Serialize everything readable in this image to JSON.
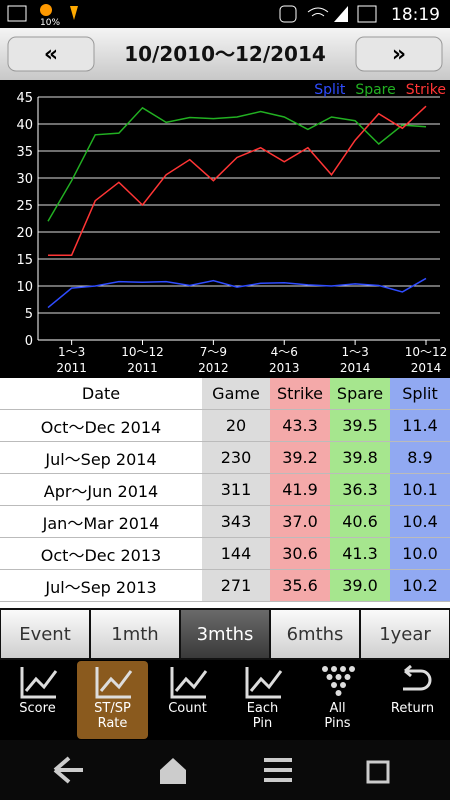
{
  "status_bar": {
    "weather_percent": "10%",
    "time": "18:19"
  },
  "header": {
    "prev": "«",
    "title": "10/2010〜12/2014",
    "next": "»"
  },
  "chart_data": {
    "type": "line",
    "categories": [
      null,
      [
        "1〜3",
        "2011"
      ],
      null,
      null,
      [
        "10〜12",
        "2011"
      ],
      null,
      null,
      [
        "7〜9",
        "2012"
      ],
      null,
      null,
      [
        "4〜6",
        "2013"
      ],
      null,
      null,
      [
        "1〜3",
        "2014"
      ],
      null,
      null,
      [
        "10〜12",
        "2014"
      ]
    ],
    "series": [
      {
        "name": "Split",
        "color": "#2f4cff",
        "values": [
          6.0,
          9.6,
          10.0,
          10.8,
          10.7,
          10.8,
          10.1,
          11.0,
          9.8,
          10.5,
          10.6,
          10.2,
          10.0,
          10.4,
          10.1,
          8.9,
          11.4
        ]
      },
      {
        "name": "Spare",
        "color": "#22b022",
        "values": [
          22.0,
          29.5,
          38.0,
          38.3,
          43.0,
          40.3,
          41.2,
          41.0,
          41.3,
          42.3,
          41.3,
          39.0,
          41.3,
          40.6,
          36.3,
          39.8,
          39.5
        ]
      },
      {
        "name": "Strike",
        "color": "#ff3535",
        "values": [
          15.7,
          15.7,
          25.8,
          29.2,
          25.0,
          30.6,
          33.4,
          29.5,
          33.8,
          35.6,
          33.0,
          35.6,
          30.6,
          37.0,
          41.9,
          39.2,
          43.3
        ]
      }
    ],
    "ylim": [
      0,
      45
    ],
    "yticks": [
      0,
      5,
      10,
      15,
      20,
      25,
      30,
      35,
      40,
      45
    ],
    "grid": true,
    "legend": "top-right"
  },
  "table": {
    "columns": [
      "Date",
      "Game",
      "Strike",
      "Spare",
      "Split"
    ],
    "rows": [
      [
        "Oct〜Dec 2014",
        "20",
        "43.3",
        "39.5",
        "11.4"
      ],
      [
        "Jul〜Sep 2014",
        "230",
        "39.2",
        "39.8",
        "8.9"
      ],
      [
        "Apr〜Jun 2014",
        "311",
        "41.9",
        "36.3",
        "10.1"
      ],
      [
        "Jan〜Mar 2014",
        "343",
        "37.0",
        "40.6",
        "10.4"
      ],
      [
        "Oct〜Dec 2013",
        "144",
        "30.6",
        "41.3",
        "10.0"
      ],
      [
        "Jul〜Sep 2013",
        "271",
        "35.6",
        "39.0",
        "10.2"
      ]
    ]
  },
  "tabs": {
    "items": [
      "Event",
      "1mth",
      "3mths",
      "6mths",
      "1year"
    ],
    "selected": 2
  },
  "toolbar": {
    "items": [
      [
        "Score"
      ],
      [
        "ST/SP",
        "Rate"
      ],
      [
        "Count"
      ],
      [
        "Each",
        "Pin"
      ],
      [
        "All",
        "Pins"
      ],
      [
        "Return"
      ]
    ],
    "selected": 1
  }
}
